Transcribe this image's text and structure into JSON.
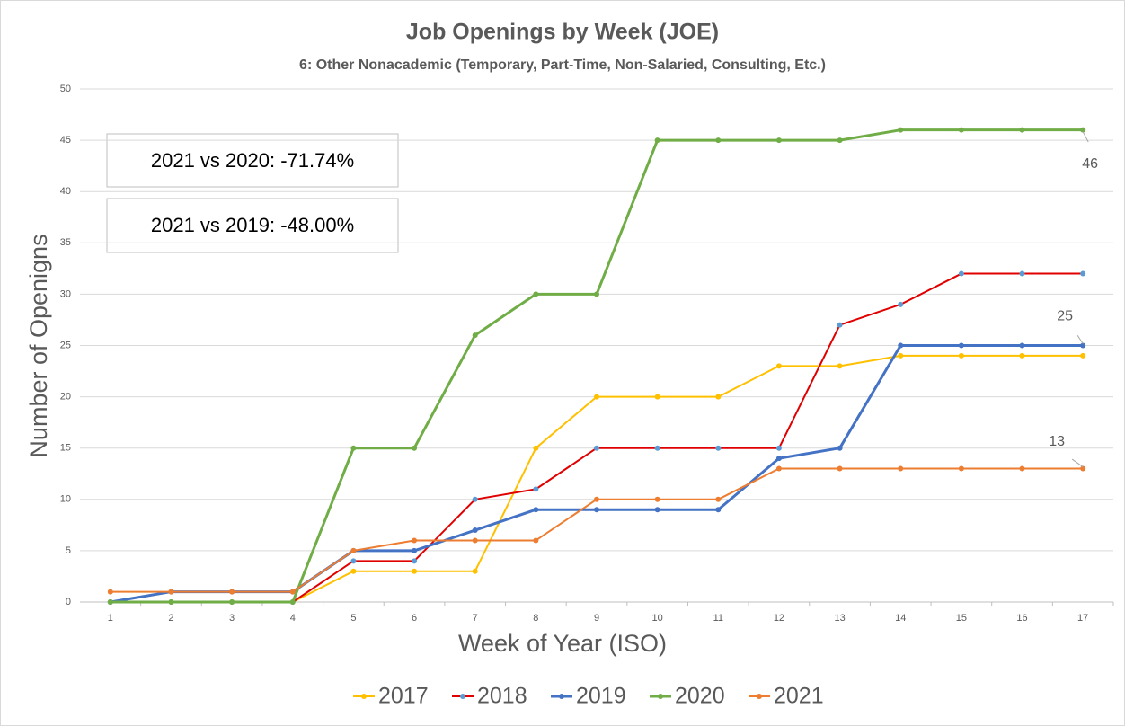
{
  "chart_data": {
    "type": "line",
    "title": "Job Openings by Week (JOE)",
    "subtitle": "6: Other Nonacademic (Temporary, Part-Time, Non-Salaried, Consulting, Etc.)",
    "x_label": "Week of Year (ISO)",
    "y_label": "Number of Openigns",
    "annotations": [
      "2021 vs 2020: -71.74%",
      "2021 vs 2019: -48.00%"
    ],
    "categories": [
      1,
      2,
      3,
      4,
      5,
      6,
      7,
      8,
      9,
      10,
      11,
      12,
      13,
      14,
      15,
      16,
      17
    ],
    "ylim": [
      0,
      50
    ],
    "yticks": [
      0,
      5,
      10,
      15,
      20,
      25,
      30,
      35,
      40,
      45,
      50
    ],
    "grid": true,
    "legend": "bottom",
    "series": [
      {
        "name": "2017",
        "color": "#ffc000",
        "marker_color": "#ffc000",
        "line_width": 2,
        "values": [
          0,
          0,
          0,
          0,
          3,
          3,
          3,
          15,
          20,
          20,
          20,
          23,
          23,
          24,
          24,
          24,
          24
        ]
      },
      {
        "name": "2018",
        "color": "#e00000",
        "marker_color": "#5b9bd5",
        "line_width": 2,
        "values": [
          0,
          0,
          0,
          0,
          4,
          4,
          10,
          11,
          15,
          15,
          15,
          15,
          27,
          29,
          32,
          32,
          32
        ]
      },
      {
        "name": "2019",
        "color": "#4472c4",
        "marker_color": "#4472c4",
        "line_width": 3,
        "values": [
          0,
          1,
          1,
          1,
          5,
          5,
          7,
          9,
          9,
          9,
          9,
          14,
          15,
          25,
          25,
          25,
          25
        ]
      },
      {
        "name": "2020",
        "color": "#70ad47",
        "marker_color": "#70ad47",
        "line_width": 3,
        "values": [
          0,
          0,
          0,
          0,
          15,
          15,
          26,
          30,
          30,
          45,
          45,
          45,
          45,
          46,
          46,
          46,
          46
        ]
      },
      {
        "name": "2021",
        "color": "#ed7d31",
        "marker_color": "#ed7d31",
        "line_width": 2,
        "values": [
          1,
          1,
          1,
          1,
          5,
          6,
          6,
          6,
          10,
          10,
          10,
          13,
          13,
          13,
          13,
          13,
          13
        ]
      }
    ],
    "labelled_points": [
      {
        "series": 3,
        "index": 16
      },
      {
        "series": 2,
        "index": 16
      },
      {
        "series": 4,
        "index": 16
      }
    ]
  }
}
